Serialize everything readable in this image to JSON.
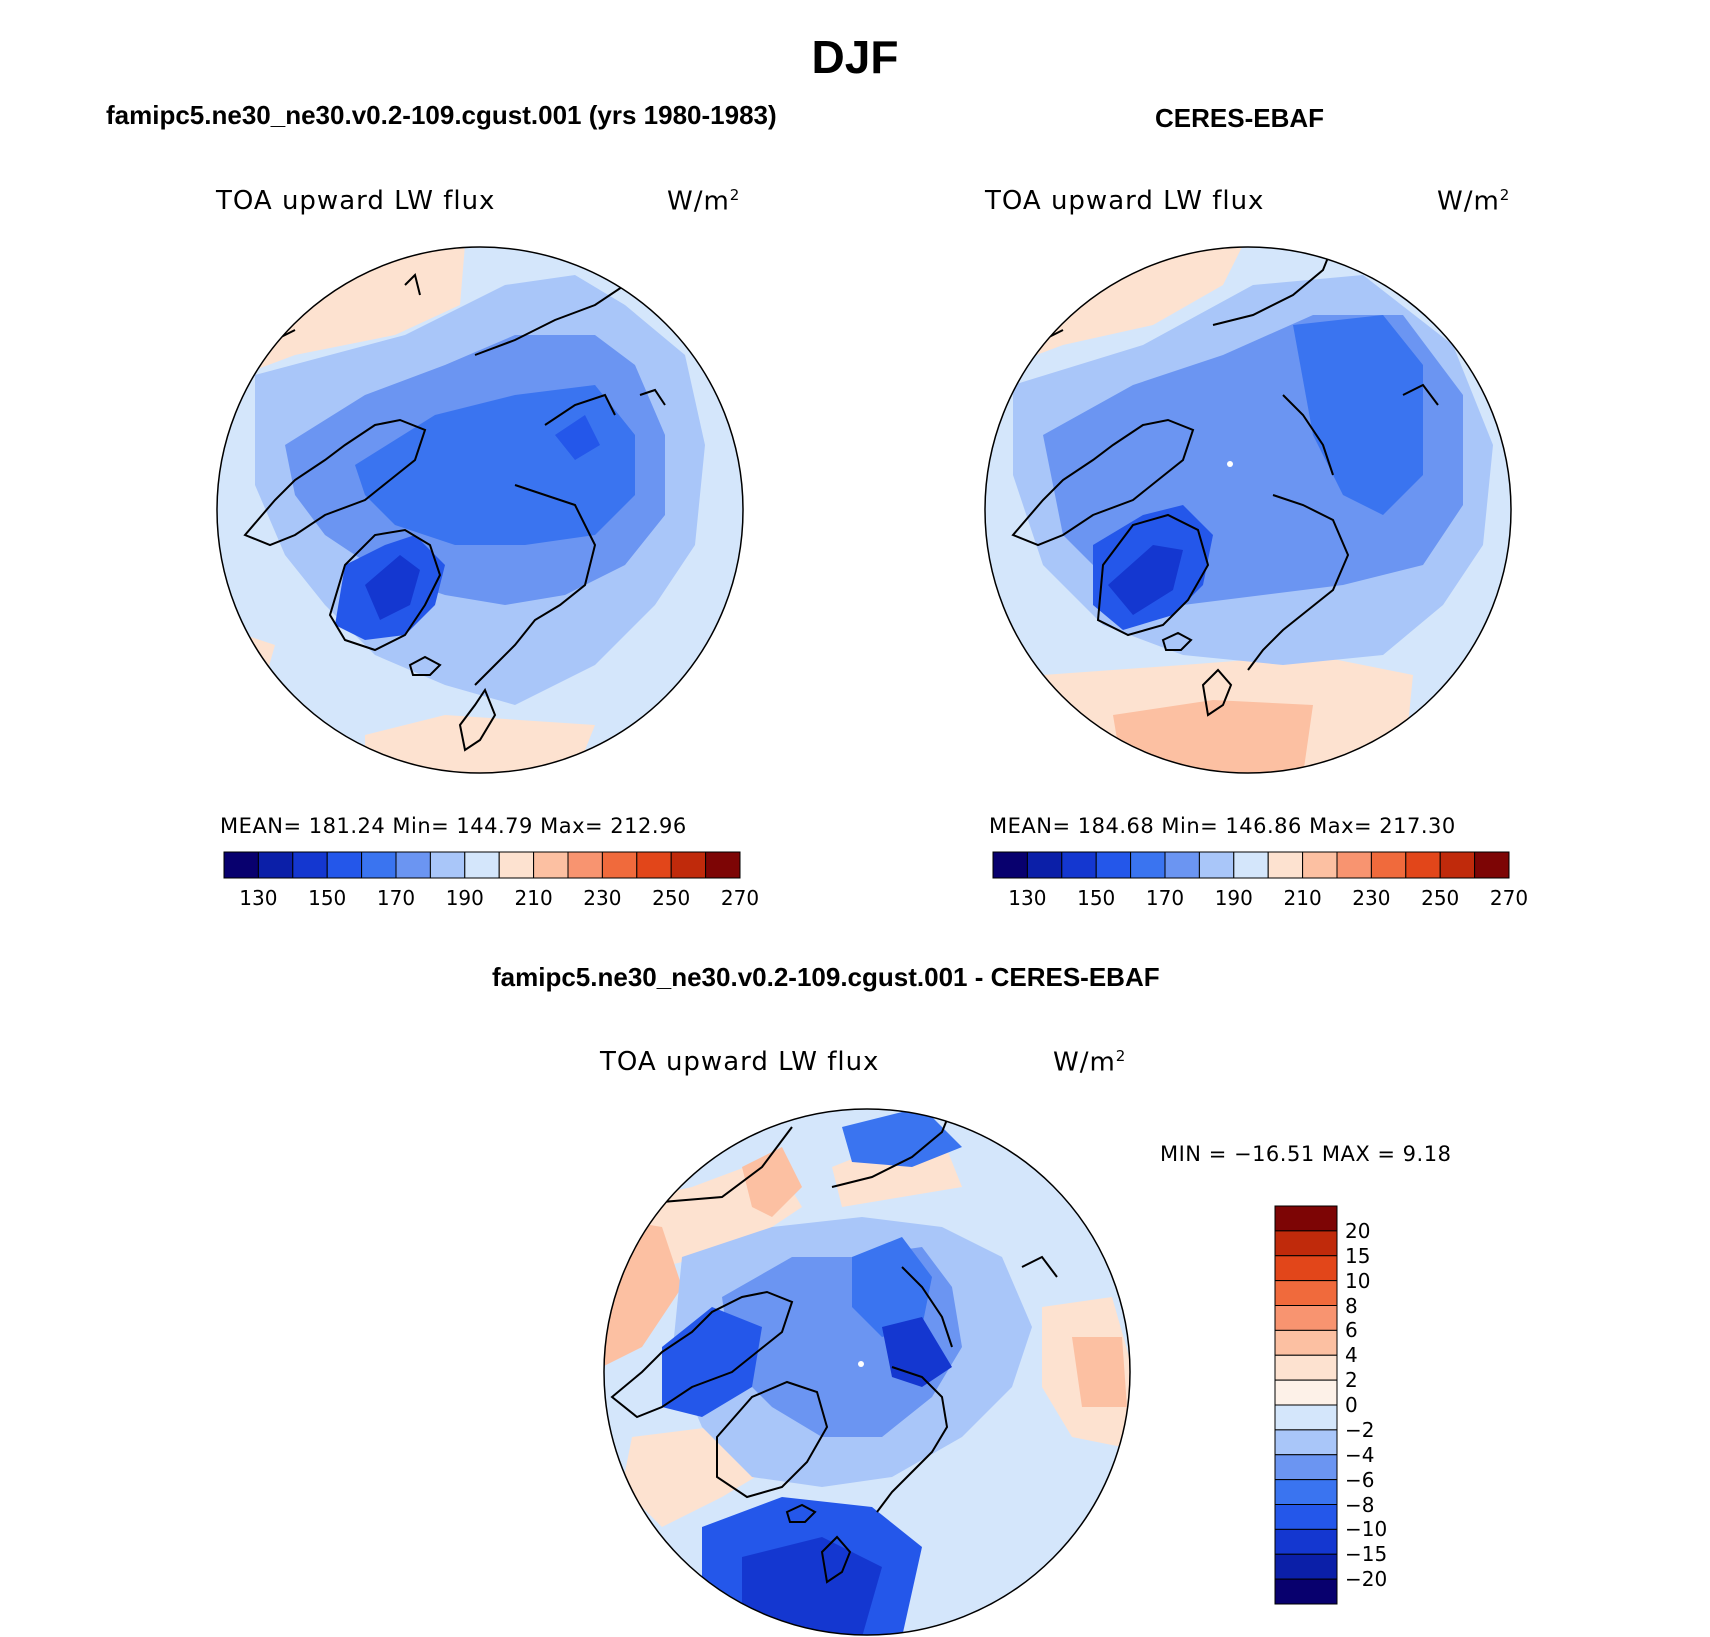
{
  "figure": {
    "title": "DJF"
  },
  "panels": [
    {
      "header": "famipc5.ne30_ne30.v0.2-109.cgust.001 (yrs 1980-1983)",
      "variable": "TOA upward LW flux",
      "units": "W/m",
      "units_exp": "2",
      "stats": "MEAN= 181.24   Min= 144.79   Max= 212.96"
    },
    {
      "header": "CERES-EBAF",
      "variable": "TOA upward LW flux",
      "units": "W/m",
      "units_exp": "2",
      "stats": "MEAN= 184.68   Min= 146.86   Max= 217.30"
    },
    {
      "header": "famipc5.ne30_ne30.v0.2-109.cgust.001 - CERES-EBAF",
      "variable": "TOA upward LW flux",
      "units": "W/m",
      "units_exp": "2",
      "stats": "MIN = −16.51 MAX =    9.18"
    }
  ],
  "chart_data": [
    {
      "type": "heatmap",
      "projection": "north-polar-stereographic",
      "title": "TOA upward LW flux",
      "colorbar": {
        "orientation": "horizontal",
        "levels": [
          130,
          140,
          150,
          160,
          170,
          180,
          190,
          200,
          210,
          220,
          230,
          240,
          250,
          260,
          270
        ],
        "tick_labels": [
          "130",
          "150",
          "170",
          "190",
          "210",
          "230",
          "250",
          "270"
        ],
        "colors": [
          "#08006e",
          "#0b1fa8",
          "#1437d0",
          "#2457ea",
          "#3a74f0",
          "#6b95f2",
          "#a9c6f9",
          "#d4e6fb",
          "#fde2d0",
          "#fcc0a2",
          "#f89470",
          "#f06a3c",
          "#e2461a",
          "#c02a0b",
          "#7d0505"
        ]
      },
      "stats": {
        "mean": 181.24,
        "min": 144.79,
        "max": 212.96
      }
    },
    {
      "type": "heatmap",
      "projection": "north-polar-stereographic",
      "title": "TOA upward LW flux",
      "colorbar": {
        "orientation": "horizontal",
        "levels": [
          130,
          140,
          150,
          160,
          170,
          180,
          190,
          200,
          210,
          220,
          230,
          240,
          250,
          260,
          270
        ],
        "tick_labels": [
          "130",
          "150",
          "170",
          "190",
          "210",
          "230",
          "250",
          "270"
        ],
        "colors": [
          "#08006e",
          "#0b1fa8",
          "#1437d0",
          "#2457ea",
          "#3a74f0",
          "#6b95f2",
          "#a9c6f9",
          "#d4e6fb",
          "#fde2d0",
          "#fcc0a2",
          "#f89470",
          "#f06a3c",
          "#e2461a",
          "#c02a0b",
          "#7d0505"
        ]
      },
      "stats": {
        "mean": 184.68,
        "min": 146.86,
        "max": 217.3
      }
    },
    {
      "type": "heatmap",
      "projection": "north-polar-stereographic",
      "title": "TOA upward LW flux",
      "colorbar": {
        "orientation": "vertical",
        "tick_labels": [
          "20",
          "15",
          "10",
          "8",
          "6",
          "4",
          "2",
          "0",
          "−2",
          "−4",
          "−6",
          "−8",
          "−10",
          "−15",
          "−20"
        ],
        "colors": [
          "#7d0505",
          "#c02a0b",
          "#e2461a",
          "#f06a3c",
          "#f89470",
          "#fcc0a2",
          "#fde2d0",
          "#fdf1e8",
          "#d4e6fb",
          "#a9c6f9",
          "#6b95f2",
          "#3a74f0",
          "#2457ea",
          "#1437d0",
          "#0b1fa8",
          "#08006e"
        ]
      },
      "stats": {
        "min": -16.51,
        "max": 9.18
      }
    }
  ],
  "map_colors": {
    "ocean_light": "#d4e6fb",
    "mid_blue": "#a9c6f9",
    "blue": "#6b95f2",
    "deep_blue": "#3a74f0",
    "darker_blue": "#2457ea",
    "deepest_blue": "#1437d0",
    "warm": "#fde2d0",
    "warmer": "#fcc0a2"
  }
}
